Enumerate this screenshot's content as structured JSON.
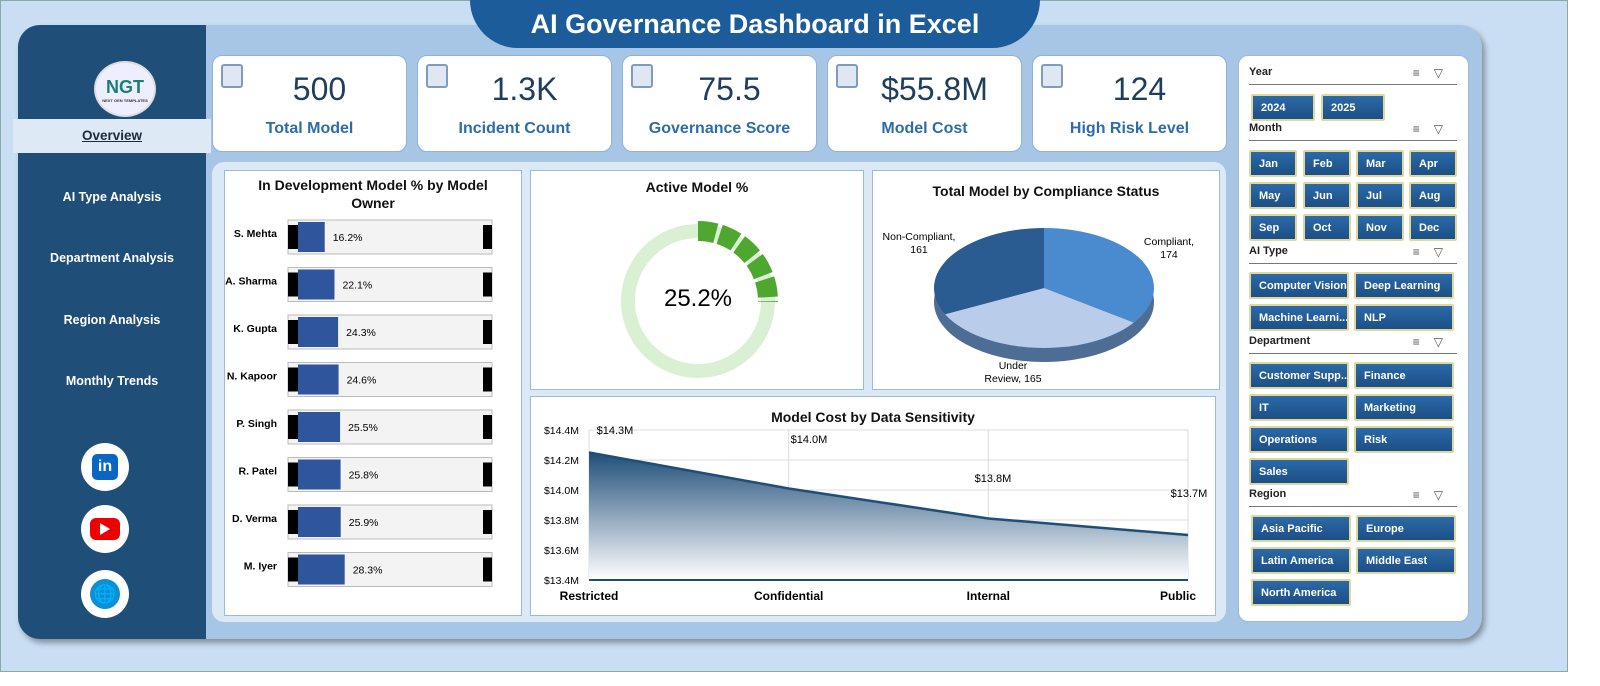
{
  "header": {
    "title": "AI Governance Dashboard in Excel"
  },
  "logo": {
    "text": "NGT",
    "tagline": "NEXT GEN TEMPLATES"
  },
  "nav": [
    {
      "label": "Overview",
      "active": true
    },
    {
      "label": "AI Type Analysis"
    },
    {
      "label": "Department Analysis"
    },
    {
      "label": "Region Analysis"
    },
    {
      "label": "Monthly Trends"
    }
  ],
  "social": [
    "linkedin-icon",
    "youtube-icon",
    "globe-icon"
  ],
  "kpis": [
    {
      "value": "500",
      "label": "Total Model"
    },
    {
      "value": "1.3K",
      "label": "Incident Count"
    },
    {
      "value": "75.5",
      "label": "Governance Score"
    },
    {
      "value": "$55.8M",
      "label": "Model Cost"
    },
    {
      "value": "124",
      "label": "High Risk Level"
    }
  ],
  "colors": {
    "sidebar": "#1f4e79",
    "accent": "#2e6ca8",
    "donut": "#4ea72e",
    "donut_track": "#d9f0d3"
  },
  "chart_data": [
    {
      "type": "bar",
      "title": "In Development Model % by Model Owner",
      "categories": [
        "S. Mehta",
        "A. Sharma",
        "K. Gupta",
        "N. Kapoor",
        "P. Singh",
        "R. Patel",
        "D. Verma",
        "M. Iyer"
      ],
      "values": [
        16.2,
        22.1,
        24.3,
        24.6,
        25.5,
        25.8,
        25.9,
        28.3
      ],
      "labels": [
        "16.2%",
        "22.1%",
        "24.3%",
        "24.6%",
        "25.5%",
        "25.8%",
        "25.9%",
        "28.3%"
      ]
    },
    {
      "type": "pie",
      "title": "Active Model %",
      "values": [
        25.2
      ],
      "label": "25.2%"
    },
    {
      "type": "pie",
      "title": "Total Model by Compliance Status",
      "categories": [
        "Compliant",
        "Under Review",
        "Non-Compliant"
      ],
      "values": [
        174,
        165,
        161
      ],
      "labels": [
        "Compliant, 174",
        "Under Review, 165",
        "Non-Compliant, 161"
      ]
    },
    {
      "type": "area",
      "title": "Model Cost by Data Sensitivity",
      "categories": [
        "Restricted",
        "Confidential",
        "Internal",
        "Public"
      ],
      "values": [
        14.25,
        14.01,
        13.81,
        13.7
      ],
      "labels": [
        "$14.3M",
        "$14.0M",
        "$13.8M",
        "$13.7M"
      ],
      "ylim": [
        13.4,
        14.4
      ],
      "yticks": [
        "$14.4M",
        "$14.2M",
        "$14.0M",
        "$13.8M",
        "$13.6M",
        "$13.4M"
      ],
      "grid": true
    }
  ],
  "slicers": [
    {
      "title": "Year",
      "items": [
        "2024",
        "2025"
      ]
    },
    {
      "title": "Month",
      "items": [
        "Jan",
        "Feb",
        "Mar",
        "Apr",
        "May",
        "Jun",
        "Jul",
        "Aug",
        "Sep",
        "Oct",
        "Nov",
        "Dec"
      ]
    },
    {
      "title": "AI Type",
      "items": [
        "Computer Vision",
        "Deep Learning",
        "Machine Learni...",
        "NLP"
      ]
    },
    {
      "title": "Department",
      "items": [
        "Customer Supp...",
        "Finance",
        "IT",
        "Marketing",
        "Operations",
        "Risk",
        "Sales"
      ]
    },
    {
      "title": "Region",
      "items": [
        "Asia Pacific",
        "Europe",
        "Latin America",
        "Middle East",
        "North America"
      ]
    }
  ]
}
